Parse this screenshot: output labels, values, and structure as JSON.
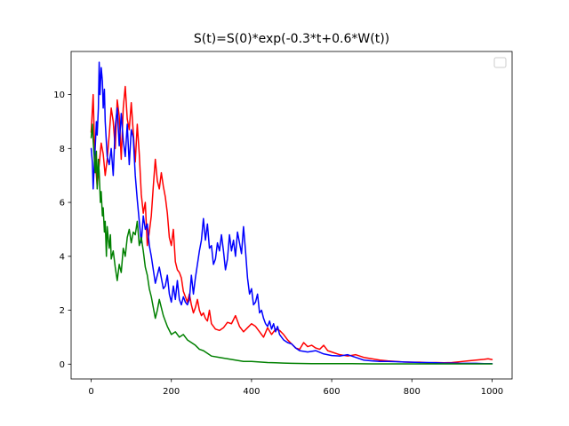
{
  "chart_data": {
    "type": "line",
    "title": "S(t)=S(0)*exp(-0.3*t+0.6*W(t))",
    "xlabel": "",
    "ylabel": "",
    "xlim": [
      -50,
      1050
    ],
    "ylim": [
      -0.55,
      11.6
    ],
    "xticks": [
      0,
      200,
      400,
      600,
      800,
      1000
    ],
    "yticks": [
      0,
      2,
      4,
      6,
      8,
      10
    ],
    "grid": false,
    "legend": {
      "placement": "top-right",
      "entries": []
    },
    "series": [
      {
        "color": "#ff0000",
        "x": [
          0,
          5,
          8,
          12,
          15,
          20,
          25,
          30,
          35,
          40,
          45,
          50,
          55,
          60,
          65,
          70,
          75,
          80,
          85,
          90,
          95,
          100,
          105,
          110,
          115,
          120,
          125,
          130,
          135,
          140,
          145,
          150,
          155,
          160,
          165,
          170,
          175,
          180,
          185,
          190,
          195,
          200,
          205,
          210,
          215,
          220,
          225,
          230,
          235,
          240,
          245,
          250,
          255,
          260,
          265,
          270,
          275,
          280,
          285,
          290,
          295,
          300,
          310,
          320,
          330,
          340,
          350,
          360,
          370,
          380,
          390,
          400,
          410,
          420,
          430,
          440,
          450,
          460,
          470,
          480,
          490,
          500,
          510,
          520,
          530,
          540,
          550,
          560,
          570,
          580,
          590,
          600,
          620,
          640,
          660,
          680,
          700,
          720,
          740,
          760,
          780,
          800,
          820,
          840,
          860,
          880,
          900,
          920,
          940,
          960,
          980,
          990,
          1000
        ],
        "values": [
          8.6,
          10.0,
          8.3,
          7.2,
          6.6,
          7.4,
          8.2,
          7.8,
          7.0,
          7.6,
          8.5,
          9.5,
          9.0,
          8.0,
          9.8,
          9.2,
          7.6,
          9.5,
          10.3,
          9.1,
          8.7,
          9.7,
          8.6,
          7.5,
          8.9,
          7.8,
          6.3,
          5.6,
          6.0,
          4.4,
          4.9,
          5.5,
          6.6,
          7.6,
          6.8,
          6.5,
          7.1,
          6.6,
          6.2,
          5.6,
          4.7,
          4.4,
          5.0,
          3.8,
          3.5,
          3.4,
          3.2,
          2.7,
          2.5,
          2.3,
          2.6,
          2.2,
          1.9,
          2.1,
          2.4,
          2.0,
          1.8,
          1.9,
          1.7,
          1.6,
          2.0,
          1.5,
          1.3,
          1.25,
          1.35,
          1.55,
          1.5,
          1.8,
          1.4,
          1.2,
          1.35,
          1.5,
          1.4,
          1.2,
          1.0,
          1.35,
          1.1,
          1.3,
          1.25,
          1.1,
          0.9,
          0.75,
          0.6,
          0.55,
          0.8,
          0.65,
          0.7,
          0.6,
          0.55,
          0.7,
          0.5,
          0.45,
          0.35,
          0.3,
          0.35,
          0.25,
          0.2,
          0.15,
          0.12,
          0.1,
          0.08,
          0.07,
          0.07,
          0.05,
          0.06,
          0.05,
          0.06,
          0.09,
          0.12,
          0.15,
          0.18,
          0.2,
          0.17
        ]
      },
      {
        "color": "#0000ff",
        "x": [
          0,
          3,
          5,
          8,
          10,
          13,
          15,
          18,
          20,
          22,
          25,
          28,
          30,
          33,
          35,
          40,
          45,
          50,
          55,
          60,
          65,
          70,
          75,
          80,
          85,
          90,
          95,
          100,
          105,
          110,
          115,
          120,
          125,
          130,
          135,
          140,
          145,
          150,
          155,
          160,
          165,
          170,
          175,
          180,
          185,
          190,
          195,
          200,
          205,
          210,
          215,
          220,
          225,
          230,
          235,
          240,
          245,
          250,
          255,
          260,
          265,
          270,
          275,
          280,
          285,
          290,
          295,
          300,
          305,
          310,
          315,
          320,
          325,
          330,
          335,
          340,
          345,
          350,
          355,
          360,
          365,
          370,
          375,
          380,
          385,
          390,
          395,
          400,
          405,
          410,
          415,
          420,
          425,
          430,
          435,
          440,
          445,
          450,
          455,
          460,
          465,
          470,
          480,
          490,
          500,
          510,
          520,
          540,
          560,
          580,
          600,
          620,
          640,
          660,
          680,
          700,
          720,
          740,
          760,
          780,
          800,
          820,
          840,
          860,
          880,
          900,
          920,
          940,
          960,
          980,
          1000
        ],
        "values": [
          8.0,
          7.5,
          6.5,
          7.5,
          8.0,
          9.0,
          8.5,
          9.5,
          11.2,
          10.0,
          11.0,
          10.5,
          9.5,
          10.2,
          9.0,
          7.7,
          7.4,
          8.0,
          7.0,
          8.8,
          9.5,
          8.1,
          9.3,
          8.3,
          7.7,
          8.9,
          7.4,
          8.7,
          8.4,
          7.0,
          6.1,
          5.3,
          4.5,
          5.5,
          5.0,
          5.2,
          4.4,
          4.0,
          3.5,
          3.0,
          3.3,
          3.6,
          3.2,
          2.8,
          2.9,
          3.3,
          2.6,
          2.3,
          2.9,
          2.4,
          3.1,
          2.4,
          2.2,
          2.5,
          2.3,
          2.2,
          2.4,
          3.3,
          2.6,
          3.2,
          3.7,
          4.2,
          4.6,
          5.4,
          4.6,
          5.2,
          4.3,
          4.4,
          3.7,
          3.9,
          4.5,
          4.2,
          4.8,
          4.2,
          3.5,
          3.9,
          4.8,
          4.2,
          4.6,
          4.0,
          4.9,
          4.5,
          4.1,
          5.1,
          4.2,
          3.2,
          2.6,
          2.8,
          2.2,
          2.3,
          2.6,
          1.9,
          2.0,
          1.7,
          1.5,
          1.4,
          1.6,
          1.3,
          1.5,
          1.2,
          1.4,
          1.1,
          0.9,
          0.8,
          0.75,
          0.6,
          0.5,
          0.45,
          0.5,
          0.38,
          0.32,
          0.3,
          0.35,
          0.25,
          0.15,
          0.12,
          0.1,
          0.1,
          0.09,
          0.08,
          0.07,
          0.06,
          0.06,
          0.05,
          0.04,
          0.04,
          0.03,
          0.03,
          0.03,
          0.02,
          0.02
        ]
      },
      {
        "color": "#008000",
        "x": [
          0,
          3,
          5,
          8,
          10,
          13,
          15,
          18,
          20,
          23,
          25,
          28,
          30,
          33,
          35,
          38,
          40,
          43,
          45,
          48,
          50,
          55,
          60,
          65,
          70,
          75,
          80,
          85,
          90,
          95,
          100,
          105,
          110,
          115,
          120,
          125,
          130,
          135,
          140,
          145,
          150,
          155,
          160,
          165,
          170,
          175,
          180,
          185,
          190,
          200,
          210,
          220,
          230,
          240,
          250,
          260,
          270,
          280,
          290,
          300,
          320,
          340,
          360,
          380,
          400,
          420,
          440,
          460,
          480,
          500,
          550,
          600,
          650,
          700,
          750,
          800,
          850,
          900,
          950,
          1000
        ],
        "values": [
          8.4,
          8.9,
          8.3,
          7.6,
          7.1,
          7.9,
          6.5,
          7.6,
          7.1,
          6.0,
          6.4,
          5.5,
          5.8,
          4.9,
          5.3,
          4.0,
          5.1,
          4.6,
          4.3,
          4.8,
          3.9,
          4.2,
          3.6,
          3.1,
          3.7,
          3.4,
          4.3,
          4.0,
          4.7,
          5.0,
          4.5,
          4.9,
          4.8,
          5.3,
          4.4,
          4.7,
          4.2,
          3.6,
          3.3,
          2.8,
          2.5,
          2.1,
          1.7,
          2.0,
          2.4,
          2.1,
          1.8,
          1.6,
          1.4,
          1.1,
          1.2,
          1.0,
          1.1,
          0.9,
          0.8,
          0.7,
          0.55,
          0.5,
          0.4,
          0.3,
          0.25,
          0.2,
          0.15,
          0.1,
          0.1,
          0.08,
          0.06,
          0.05,
          0.04,
          0.03,
          0.02,
          0.02,
          0.02,
          0.01,
          0.01,
          0.01,
          0.01,
          0.01,
          0.01,
          0.01
        ]
      }
    ]
  }
}
